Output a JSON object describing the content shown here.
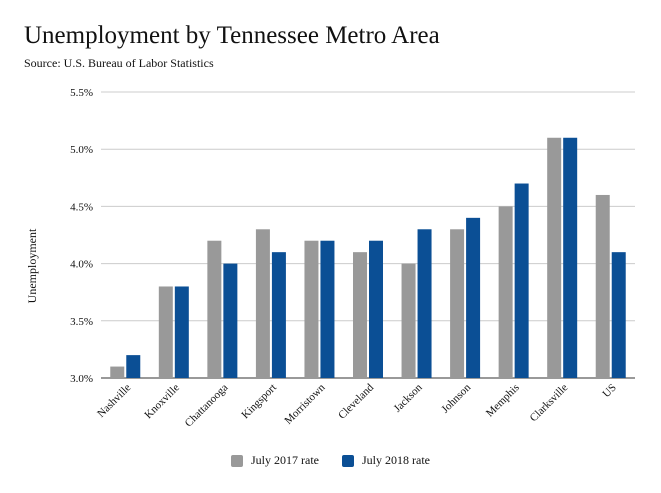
{
  "chart_data": {
    "type": "bar",
    "title": "Unemployment by Tennessee Metro Area",
    "subtitle": "Source: U.S. Bureau of Labor Statistics",
    "xlabel": "",
    "ylabel": "Unemployment",
    "ylim": [
      3.0,
      5.5
    ],
    "yticks": [
      "3.0%",
      "3.5%",
      "4.0%",
      "4.5%",
      "5.0%",
      "5.5%"
    ],
    "categories": [
      "Nashville",
      "Knoxville",
      "Chattanooga",
      "Kingsport",
      "Morristown",
      "Cleveland",
      "Jackson",
      "Johnson",
      "Memphis",
      "Clarksville",
      "US"
    ],
    "series": [
      {
        "name": "July 2017 rate",
        "color": "#999999",
        "values": [
          3.1,
          3.8,
          4.2,
          4.3,
          4.2,
          4.1,
          4.0,
          4.3,
          4.5,
          5.1,
          4.6
        ]
      },
      {
        "name": "July 2018 rate",
        "color": "#0b4f95",
        "values": [
          3.2,
          3.8,
          4.0,
          4.1,
          4.2,
          4.2,
          4.3,
          4.4,
          4.7,
          5.1,
          4.1
        ]
      }
    ],
    "grid": true,
    "legend_position": "bottom"
  }
}
